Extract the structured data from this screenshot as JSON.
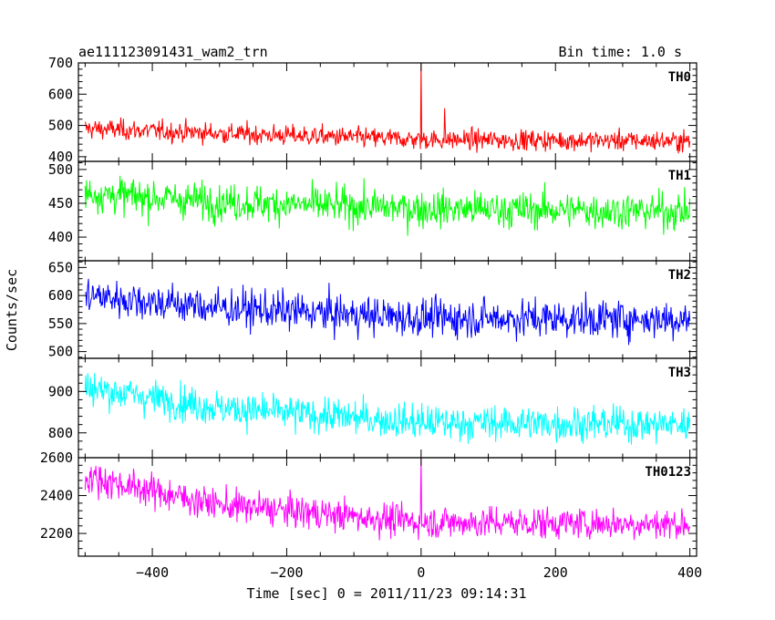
{
  "header": {
    "left_title": "ae111123091431_wam2_trn",
    "right_title": "Bin time: 1.0 s"
  },
  "chart_data": {
    "type": "line",
    "title": "ae111123091431_wam2_trn",
    "subtitle": "Bin time: 1.0 s",
    "xlabel": "Time [sec] 0 = 2011/11/23 09:14:31",
    "ylabel": "Counts/sec",
    "xlim": [
      -510,
      410
    ],
    "x_ticks": [
      "−400",
      "−200",
      "0",
      "200",
      "400"
    ],
    "x_tick_values": [
      -400,
      -200,
      0,
      200,
      400
    ],
    "x_range_of_data": [
      -500,
      400
    ],
    "bin_time_sec": 1.0,
    "grid": false,
    "series": [
      {
        "name": "TH0",
        "color": "#ff0000",
        "ylim": [
          385,
          700
        ],
        "y_ticks": [
          "400",
          "500",
          "600",
          "700"
        ],
        "y_tick_values": [
          400,
          500,
          600,
          700
        ],
        "trend": [
          [
            -500,
            490
          ],
          [
            -300,
            475
          ],
          [
            0,
            455
          ],
          [
            400,
            450
          ]
        ],
        "noise_sd": 23,
        "spikes": [
          {
            "x": 0,
            "y": 700
          },
          {
            "x": 35,
            "y": 555
          }
        ]
      },
      {
        "name": "TH1",
        "color": "#00ff00",
        "ylim": [
          365,
          512
        ],
        "y_ticks": [
          "400",
          "450",
          "500"
        ],
        "y_tick_values": [
          400,
          450,
          500
        ],
        "trend": [
          [
            -500,
            465
          ],
          [
            -300,
            452
          ],
          [
            0,
            442
          ],
          [
            400,
            438
          ]
        ],
        "noise_sd": 19,
        "spikes": []
      },
      {
        "name": "TH2",
        "color": "#0000ff",
        "ylim": [
          488,
          662
        ],
        "y_ticks": [
          "500",
          "550",
          "600",
          "650"
        ],
        "y_tick_values": [
          500,
          550,
          600,
          650
        ],
        "trend": [
          [
            -500,
            600
          ],
          [
            -300,
            578
          ],
          [
            0,
            560
          ],
          [
            400,
            558
          ]
        ],
        "noise_sd": 24,
        "spikes": []
      },
      {
        "name": "TH3",
        "color": "#00ffff",
        "ylim": [
          740,
          980
        ],
        "y_ticks": [
          "800",
          "900"
        ],
        "y_tick_values": [
          800,
          900
        ],
        "trend": [
          [
            -500,
            910
          ],
          [
            -300,
            860
          ],
          [
            0,
            825
          ],
          [
            400,
            820
          ]
        ],
        "noise_sd": 30,
        "spikes": []
      },
      {
        "name": "TH0123",
        "color": "#ff00ff",
        "ylim": [
          2080,
          2600
        ],
        "y_ticks": [
          "2200",
          "2400",
          "2600"
        ],
        "y_tick_values": [
          2200,
          2400,
          2600
        ],
        "trend": [
          [
            -500,
            2500
          ],
          [
            -300,
            2350
          ],
          [
            0,
            2260
          ],
          [
            400,
            2250
          ]
        ],
        "noise_sd": 60,
        "spikes": [
          {
            "x": 0,
            "y": 2600
          }
        ]
      }
    ]
  }
}
